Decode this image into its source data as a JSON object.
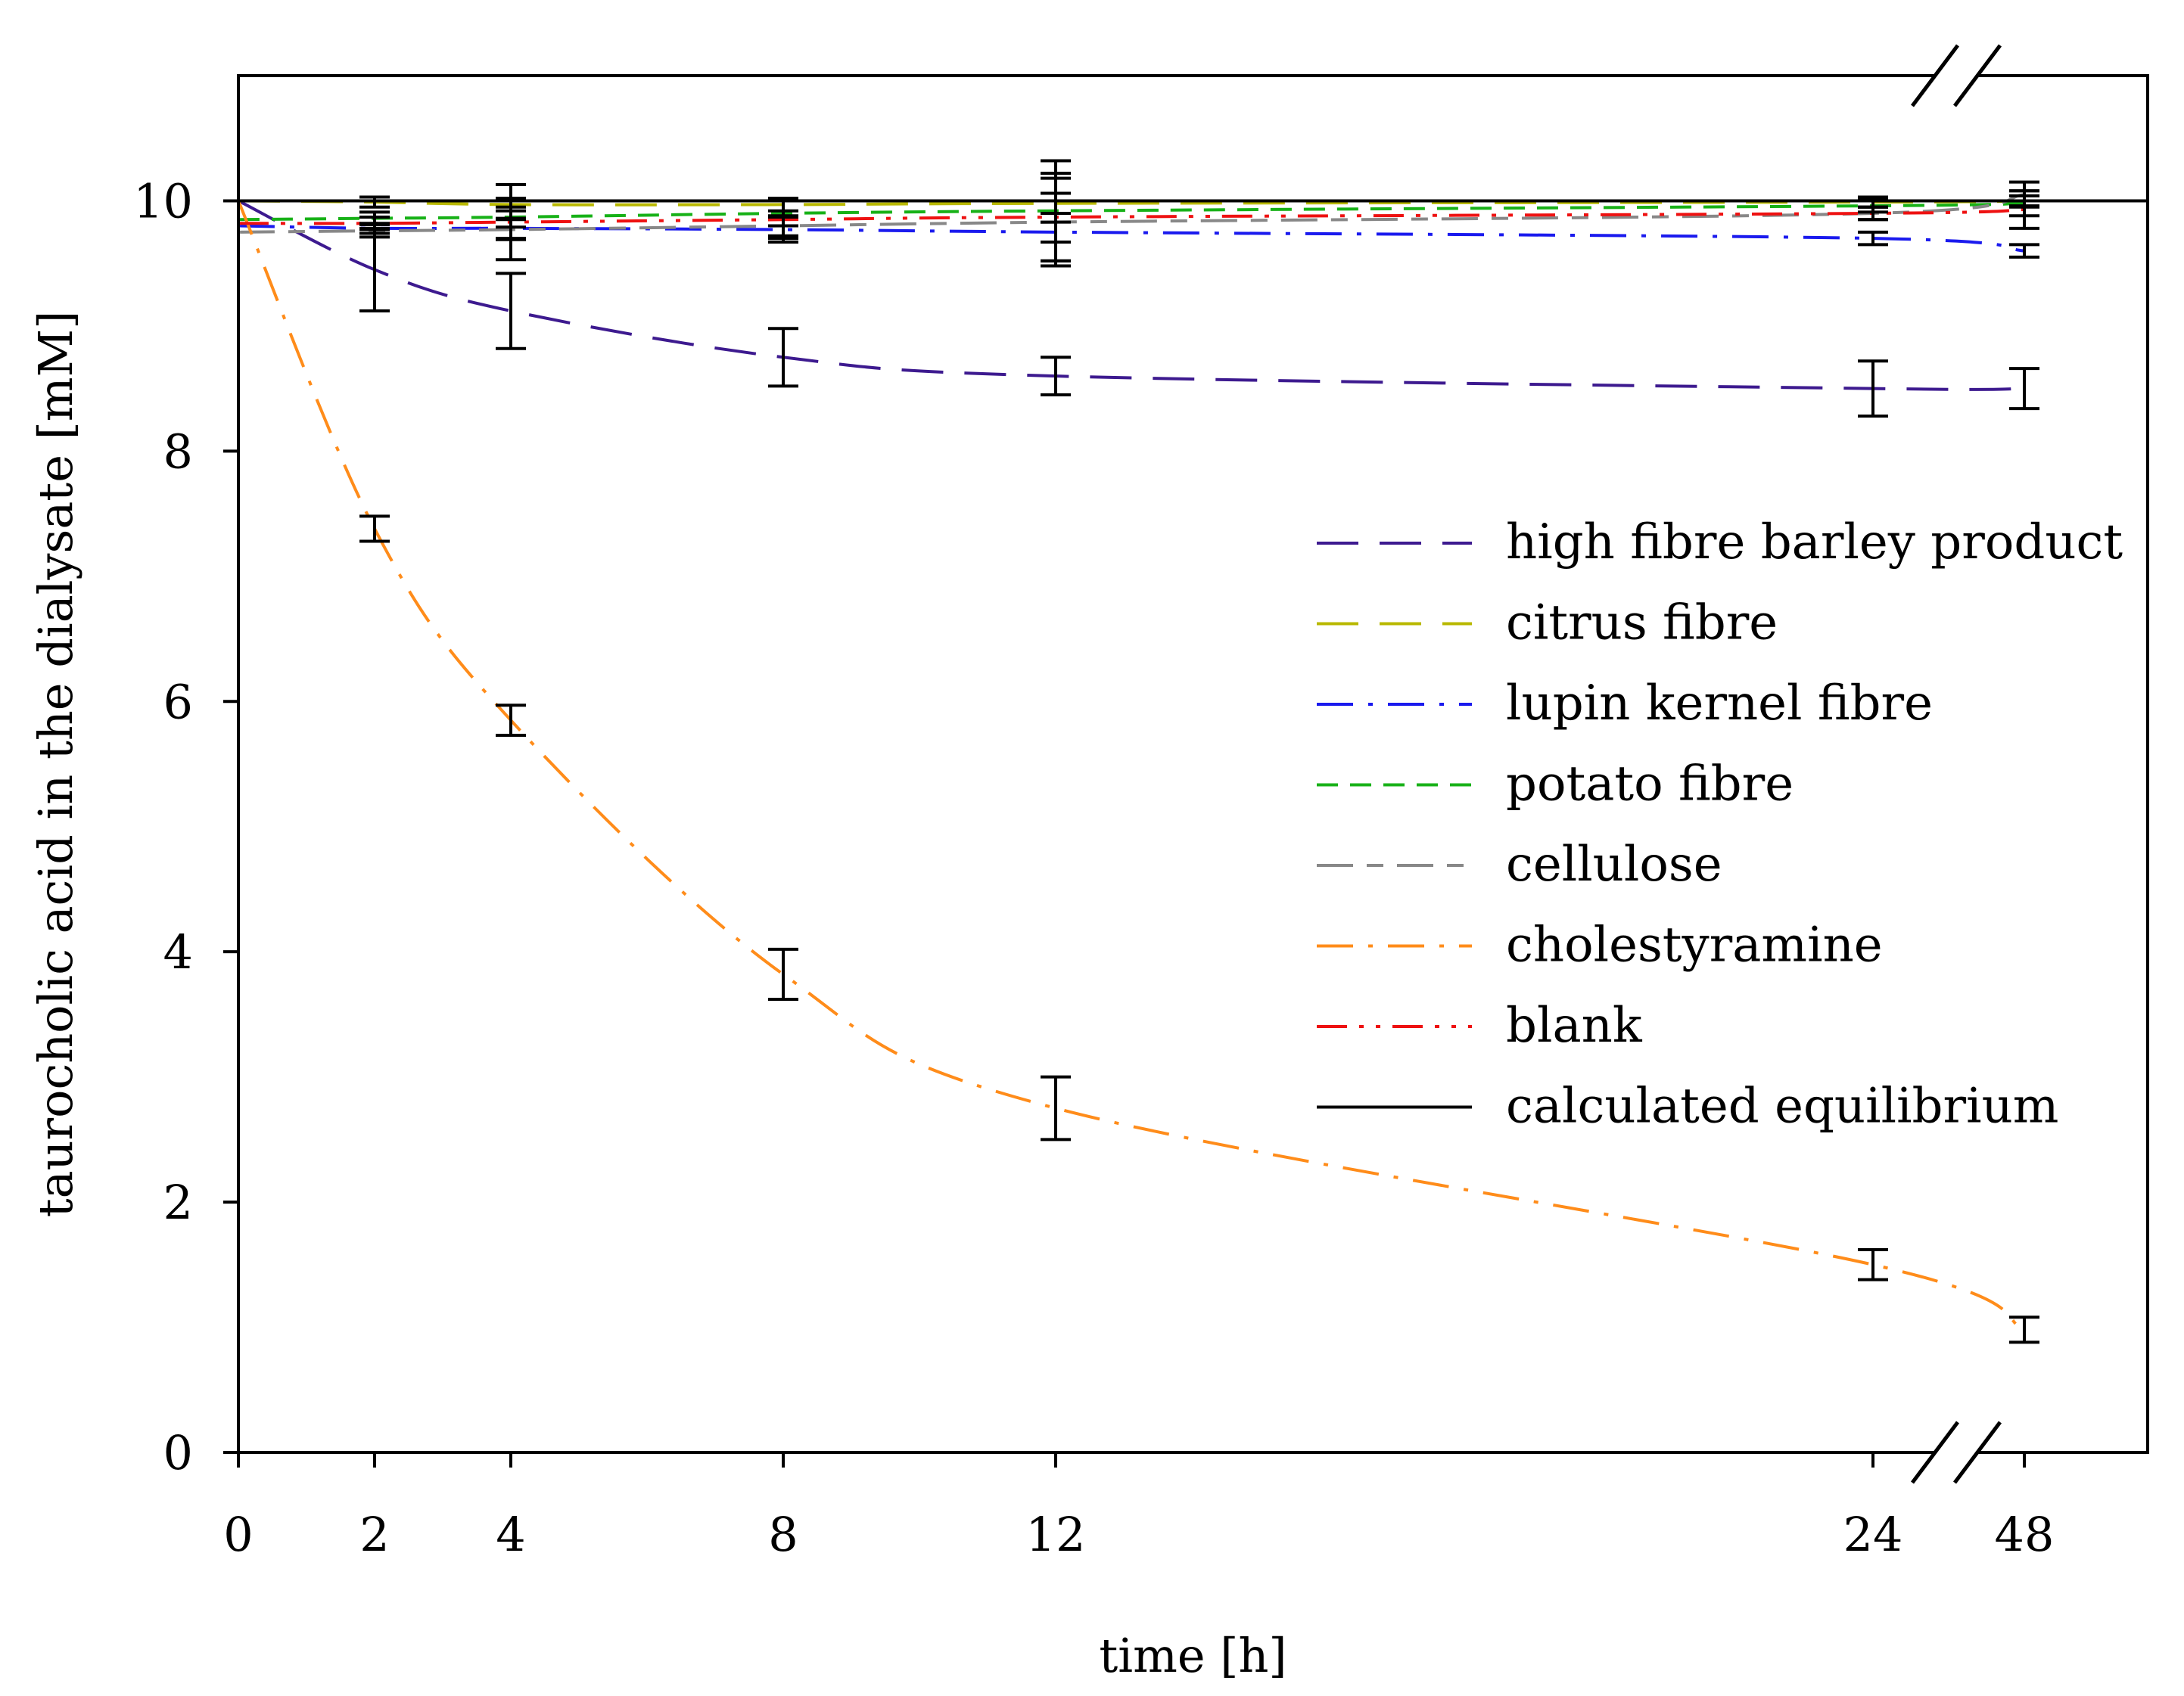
{
  "chart_data": {
    "type": "line",
    "title": "",
    "xlabel": "time [h]",
    "ylabel": "taurocholic acid in the dialysate [mM]",
    "x": [
      0,
      2,
      4,
      8,
      12,
      24,
      48
    ],
    "x_tick_labels": [
      "0",
      "2",
      "4",
      "8",
      "12",
      "24",
      "48"
    ],
    "ylim": [
      0,
      11
    ],
    "y_ticks": [
      0,
      2,
      4,
      6,
      8,
      10
    ],
    "y_tick_labels": [
      "0",
      "2",
      "4",
      "6",
      "8",
      "10"
    ],
    "axis_break": "between 24 and 48",
    "grid": false,
    "legend_position": "right",
    "series": [
      {
        "name": "high fibre barley product",
        "color": "#3d1a8f",
        "dash": "long-dash",
        "values": [
          10.0,
          9.45,
          9.12,
          8.75,
          8.6,
          8.5,
          8.5
        ],
        "errors": [
          0,
          0.33,
          0.3,
          0.23,
          0.15,
          0.22,
          0.16
        ]
      },
      {
        "name": "citrus fibre",
        "color": "#b8b800",
        "dash": "long-dash",
        "values": [
          10.0,
          9.99,
          9.97,
          9.97,
          9.98,
          9.99,
          10.0
        ],
        "errors": [
          0,
          0.04,
          0.05,
          0.05,
          0.08,
          0.04,
          0.04
        ]
      },
      {
        "name": "lupin kernel fibre",
        "color": "#1a1aee",
        "dash": "dash-dot",
        "values": [
          9.8,
          9.78,
          9.78,
          9.77,
          9.75,
          9.7,
          9.6
        ],
        "errors": [
          0,
          0.04,
          0.08,
          0.1,
          0.08,
          0.05,
          0.05
        ]
      },
      {
        "name": "potato fibre",
        "color": "#17b117",
        "dash": "short-dash",
        "values": [
          9.85,
          9.86,
          9.87,
          9.9,
          9.92,
          9.96,
          9.98
        ],
        "errors": [
          0,
          0.05,
          0.08,
          0.1,
          0.4,
          0.05,
          0.1
        ]
      },
      {
        "name": "cellulose",
        "color": "#888888",
        "dash": "long-short-dash",
        "values": [
          9.75,
          9.76,
          9.77,
          9.8,
          9.83,
          9.9,
          10.05
        ],
        "errors": [
          0,
          0.05,
          0.08,
          0.08,
          0.35,
          0.05,
          0.1
        ]
      },
      {
        "name": "cholestyramine",
        "color": "#ff8c1a",
        "dash": "dash-dot",
        "values": [
          10.0,
          7.38,
          5.85,
          3.82,
          2.75,
          1.5,
          0.98
        ],
        "errors": [
          0,
          0.1,
          0.12,
          0.2,
          0.25,
          0.12,
          0.1
        ]
      },
      {
        "name": "blank",
        "color": "#ee1111",
        "dash": "dash-dot-dot",
        "values": [
          9.82,
          9.82,
          9.83,
          9.85,
          9.87,
          9.9,
          9.93
        ],
        "errors": [
          0,
          0.05,
          0.3,
          0.15,
          0.35,
          0.05,
          0.15
        ]
      },
      {
        "name": "calculated equilibrium",
        "color": "#000000",
        "dash": "solid",
        "values": [
          10.0,
          10.0,
          10.0,
          10.0,
          10.0,
          10.0,
          10.0
        ],
        "errors": [
          0,
          0,
          0,
          0,
          0,
          0,
          0
        ]
      }
    ]
  }
}
